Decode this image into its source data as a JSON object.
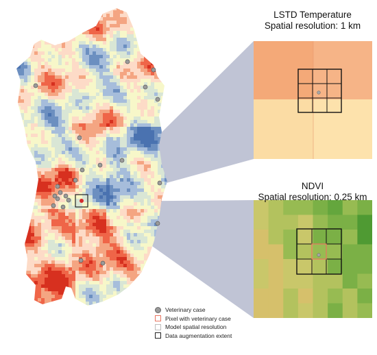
{
  "lstd_panel": {
    "title": "LSTD Temperature",
    "resolution_label": "Spatial resolution: 1 km",
    "colors": [
      "#f4a978",
      "#f6b487",
      "#fbdca4",
      "#fde2ac"
    ]
  },
  "ndvi_panel": {
    "title": "NDVI",
    "resolution_label": "Spatial resolution: 0.25 km",
    "palette": [
      "#3f8f2c",
      "#4f9a33",
      "#64a63d",
      "#7bb046",
      "#97bb52",
      "#b3c25e",
      "#c9c76a",
      "#d6c06b"
    ]
  },
  "map_palette": [
    "#d7301f",
    "#ef6548",
    "#f4a582",
    "#fddbc7",
    "#f7f7c9",
    "#d9e6d5",
    "#a6bddb",
    "#6c8fc0",
    "#4a72b0"
  ],
  "legend": {
    "veterinary_case": "Veterinary case",
    "pixel_case": "Pixel with veterinary case",
    "model_resolution": "Model spatial resolution",
    "augmentation_extent": "Data augmentation extent",
    "colors": {
      "case_fill": "#9a9a9a",
      "pixel_case_border": "#e8745f",
      "model_border": "#bdbdbd",
      "extent_border": "#222222"
    }
  }
}
